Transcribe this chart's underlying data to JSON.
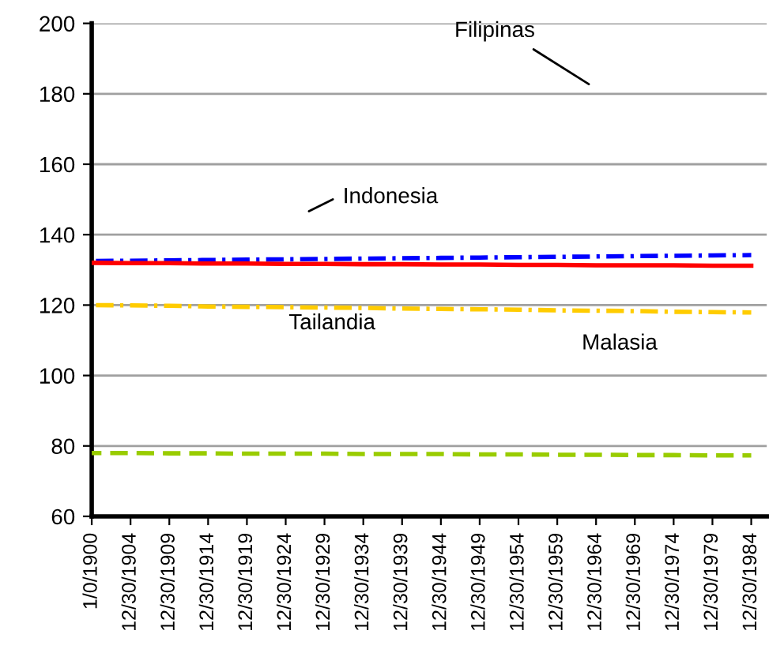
{
  "chart_data": {
    "type": "line",
    "categories": [
      "1/0/1900",
      "12/30/1904",
      "12/30/1909",
      "12/30/1914",
      "12/30/1919",
      "12/30/1924",
      "12/30/1929",
      "12/30/1934",
      "12/30/1939",
      "12/30/1944",
      "12/30/1949",
      "12/30/1954",
      "12/30/1959",
      "12/30/1964",
      "12/30/1969",
      "12/30/1974",
      "12/30/1979",
      "12/30/1984"
    ],
    "series": [
      {
        "color": "#0000ff",
        "line_style": "dashdot",
        "values": [
          132.5,
          132.6,
          132.7,
          132.8,
          132.9,
          133.0,
          133.1,
          133.2,
          133.3,
          133.4,
          133.5,
          133.6,
          133.7,
          133.8,
          133.9,
          134.0,
          134.1,
          134.2
        ]
      },
      {
        "color": "#ff0000",
        "line_style": "solid",
        "values": [
          132.0,
          131.9,
          131.9,
          131.8,
          131.8,
          131.7,
          131.7,
          131.6,
          131.6,
          131.5,
          131.5,
          131.4,
          131.4,
          131.3,
          131.3,
          131.3,
          131.2,
          131.2
        ]
      },
      {
        "color": "#ffcc00",
        "line_style": "dashdot",
        "values": [
          120.0,
          119.9,
          119.8,
          119.6,
          119.5,
          119.4,
          119.3,
          119.2,
          119.0,
          118.9,
          118.8,
          118.7,
          118.5,
          118.4,
          118.3,
          118.1,
          118.0,
          117.9
        ]
      },
      {
        "color": "#99cc00",
        "line_style": "dashed",
        "values": [
          78.0,
          78.0,
          77.9,
          77.9,
          77.8,
          77.8,
          77.8,
          77.7,
          77.7,
          77.7,
          77.6,
          77.6,
          77.5,
          77.5,
          77.4,
          77.4,
          77.3,
          77.3
        ]
      }
    ],
    "ylim": [
      60,
      200
    ],
    "yticks": [
      60,
      80,
      100,
      120,
      140,
      160,
      180,
      200
    ],
    "grid": "y",
    "annotations": [
      "Filipinas",
      "Indonesia",
      "Tailandia",
      "Malasia"
    ]
  }
}
